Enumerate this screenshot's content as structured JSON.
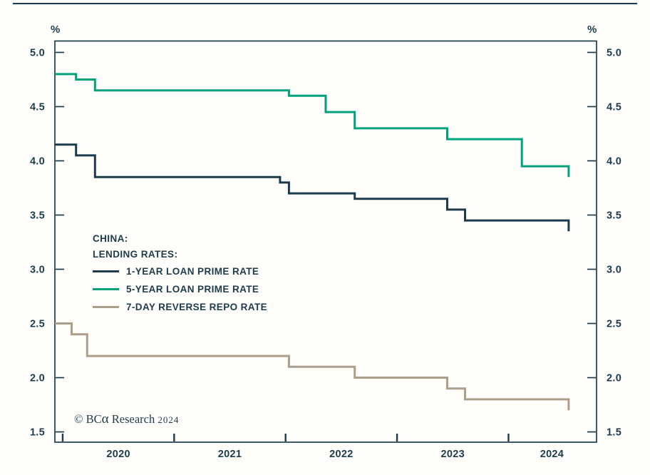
{
  "units": {
    "percent_left": "%",
    "percent_right": "%"
  },
  "legend": {
    "heading1": "CHINA:",
    "heading2": "LENDING RATES:",
    "items": [
      {
        "label": "1-YEAR LOAN PRIME RATE",
        "color": "#1c3c4d"
      },
      {
        "label": "5-YEAR LOAN PRIME RATE",
        "color": "#00a27b"
      },
      {
        "label": "7-DAY REVERSE REPO RATE",
        "color": "#ac9e8b"
      }
    ]
  },
  "footer": {
    "copyright_prefix": "© BC",
    "copyright_alpha": "α",
    "copyright_suffix": " Research",
    "year": "2024"
  },
  "colors": {
    "axis": "#1c3c4d",
    "background": "#fffefa",
    "navy": "#1c3c4d",
    "green": "#00a27b",
    "tan": "#ac9e8b"
  },
  "chart_data": {
    "type": "line",
    "subtype": "step-after",
    "title": "China: Lending Rates",
    "xlabel": "",
    "ylabel": "%",
    "grid": false,
    "legend_position": "inside-middle-left",
    "x_domain": [
      2019.93,
      2024.79
    ],
    "y_domain": [
      1.405,
      5.105
    ],
    "y_ticks": [
      5.0,
      4.5,
      4.0,
      3.5,
      3.0,
      2.5,
      2.0,
      1.5
    ],
    "y_tick_labels": [
      "5.0",
      "4.5",
      "4.0",
      "3.5",
      "3.0",
      "2.5",
      "2.0",
      "1.5"
    ],
    "x_ticks": [
      2020,
      2021,
      2022,
      2023,
      2024
    ],
    "x_tick_labels": [
      "2020",
      "2021",
      "2022",
      "2023",
      "2024"
    ],
    "x_label_positions": [
      2020.5,
      2021.5,
      2022.5,
      2023.5,
      2024.39
    ],
    "series": [
      {
        "name": "1-YEAR LOAN PRIME RATE",
        "color": "#1c3c4d",
        "points": [
          [
            2019.93,
            4.15
          ],
          [
            2020.12,
            4.05
          ],
          [
            2020.29,
            3.85
          ],
          [
            2021.95,
            3.8
          ],
          [
            2022.03,
            3.7
          ],
          [
            2022.62,
            3.65
          ],
          [
            2023.45,
            3.55
          ],
          [
            2023.61,
            3.45
          ],
          [
            2024.54,
            3.35
          ]
        ]
      },
      {
        "name": "5-YEAR LOAN PRIME RATE",
        "color": "#00a27b",
        "points": [
          [
            2019.93,
            4.8
          ],
          [
            2020.12,
            4.75
          ],
          [
            2020.29,
            4.65
          ],
          [
            2022.03,
            4.6
          ],
          [
            2022.36,
            4.45
          ],
          [
            2022.62,
            4.3
          ],
          [
            2023.45,
            4.2
          ],
          [
            2024.12,
            3.95
          ],
          [
            2024.54,
            3.85
          ]
        ]
      },
      {
        "name": "7-DAY REVERSE REPO RATE",
        "color": "#ac9e8b",
        "points": [
          [
            2019.93,
            2.5
          ],
          [
            2020.08,
            2.4
          ],
          [
            2020.22,
            2.2
          ],
          [
            2022.03,
            2.1
          ],
          [
            2022.62,
            2.0
          ],
          [
            2023.45,
            1.9
          ],
          [
            2023.61,
            1.8
          ],
          [
            2024.54,
            1.7
          ]
        ]
      }
    ]
  }
}
